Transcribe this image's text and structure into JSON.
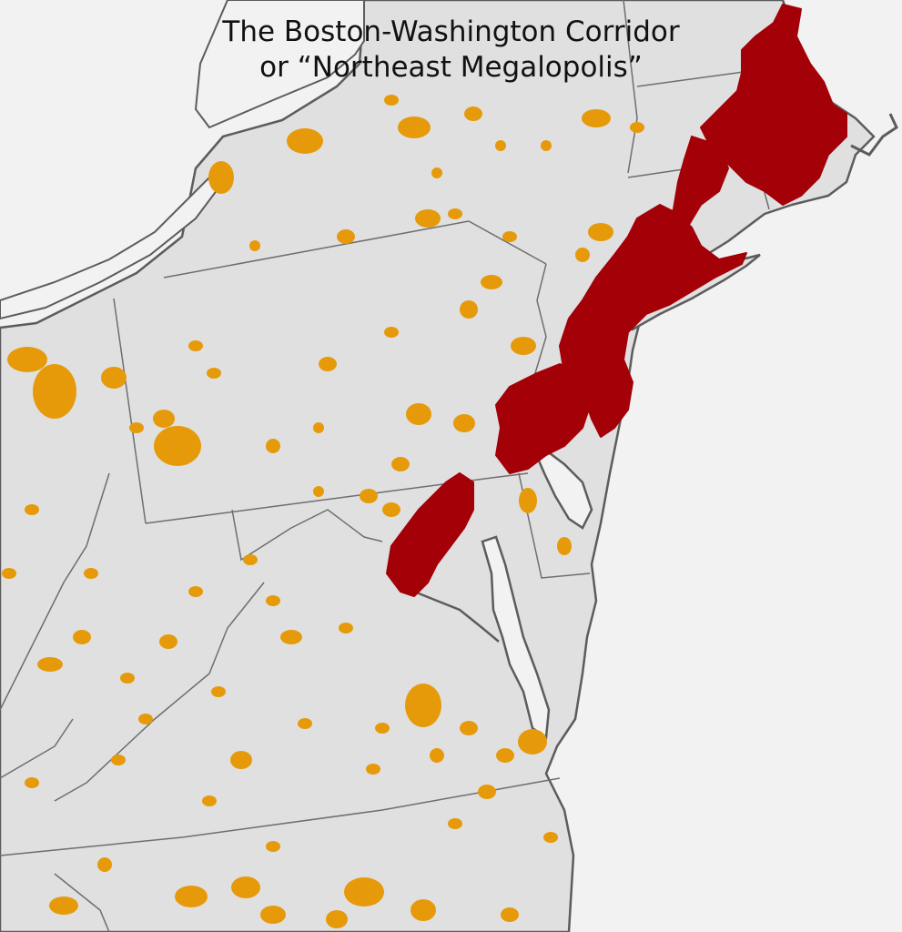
{
  "title": {
    "line1": "The Boston-Washington Corridor",
    "line2": "or “Northeast Megalopolis”"
  },
  "colors": {
    "ocean": "#f2f2f2",
    "land": "#e0e0e0",
    "border": "#6e6e6e",
    "coast": "#5c5c5c",
    "megalopolis": "#a30008",
    "urban": "#e69a0a"
  }
}
